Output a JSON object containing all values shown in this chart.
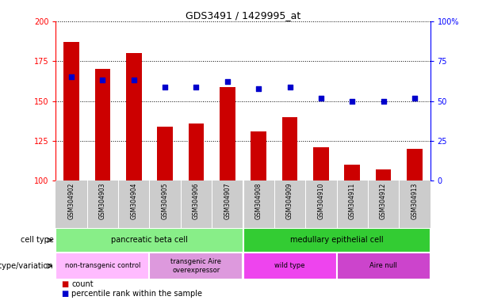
{
  "title": "GDS3491 / 1429995_at",
  "samples": [
    "GSM304902",
    "GSM304903",
    "GSM304904",
    "GSM304905",
    "GSM304906",
    "GSM304907",
    "GSM304908",
    "GSM304909",
    "GSM304910",
    "GSM304911",
    "GSM304912",
    "GSM304913"
  ],
  "counts": [
    187,
    170,
    180,
    134,
    136,
    159,
    131,
    140,
    121,
    110,
    107,
    120
  ],
  "percentiles": [
    65,
    63,
    63,
    59,
    59,
    62,
    58,
    59,
    52,
    50,
    50,
    52
  ],
  "bar_color": "#cc0000",
  "dot_color": "#0000cc",
  "ylim_left": [
    100,
    200
  ],
  "ylim_right": [
    0,
    100
  ],
  "yticks_left": [
    100,
    125,
    150,
    175,
    200
  ],
  "yticks_right": [
    0,
    25,
    50,
    75,
    100
  ],
  "cell_type_groups": [
    {
      "label": "pancreatic beta cell",
      "start": 0,
      "end": 6,
      "color": "#88ee88"
    },
    {
      "label": "medullary epithelial cell",
      "start": 6,
      "end": 12,
      "color": "#33cc33"
    }
  ],
  "genotype_groups": [
    {
      "label": "non-transgenic control",
      "start": 0,
      "end": 3,
      "color": "#ffbbff"
    },
    {
      "label": "transgenic Aire\noverexpressor",
      "start": 3,
      "end": 6,
      "color": "#dd99dd"
    },
    {
      "label": "wild type",
      "start": 6,
      "end": 9,
      "color": "#ee44ee"
    },
    {
      "label": "Aire null",
      "start": 9,
      "end": 12,
      "color": "#cc44cc"
    }
  ],
  "legend_count_color": "#cc0000",
  "legend_pct_color": "#0000cc",
  "cell_type_row_label": "cell type",
  "genotype_row_label": "genotype/variation",
  "legend_count_label": "count",
  "legend_pct_label": "percentile rank within the sample",
  "background_color": "#ffffff",
  "xlabels_bg": "#cccccc",
  "bar_width": 0.5
}
